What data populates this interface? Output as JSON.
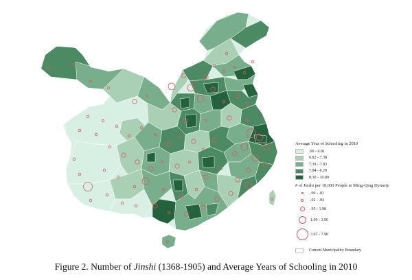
{
  "colors": {
    "class1": "#d8efe3",
    "class2": "#a9d0b5",
    "class3": "#79ae8c",
    "class4": "#4b8a63",
    "class5": "#24613d",
    "circle_stroke": "#d9585f",
    "boundary": "#bfbfbf"
  },
  "legend": {
    "schooling_title": "Average Year of Schooling in 2010",
    "schooling_classes": [
      {
        "label": ".00 - 6.81",
        "color": "#d8efe3"
      },
      {
        "label": "6.82 - 7.38",
        "color": "#a9d0b5"
      },
      {
        "label": "7.39 - 7.83",
        "color": "#79ae8c"
      },
      {
        "label": "7.84 - 8.29",
        "color": "#4b8a63"
      },
      {
        "label": "8.30 - 10.09",
        "color": "#24613d"
      }
    ],
    "jinshi_title": "# of Jinshi per 10,000 People in Ming-Qing Dynasty",
    "jinshi_classes": [
      {
        "label": ".00 - .01",
        "size": 1
      },
      {
        "label": ".02 - .94",
        "size": 2
      },
      {
        "label": ".95 - 1.98",
        "size": 3
      },
      {
        "label": "1.99 - 3.96",
        "size": 4
      },
      {
        "label": "3.97 - 7.90",
        "size": 5
      }
    ],
    "boundary_label": "Current Municipality Boundary"
  },
  "caption": {
    "prefix": "Figure 2.  Number of ",
    "italic": "Jinshi",
    "suffix": " (1368-1905) and Average Years of Schooling in 2010"
  }
}
